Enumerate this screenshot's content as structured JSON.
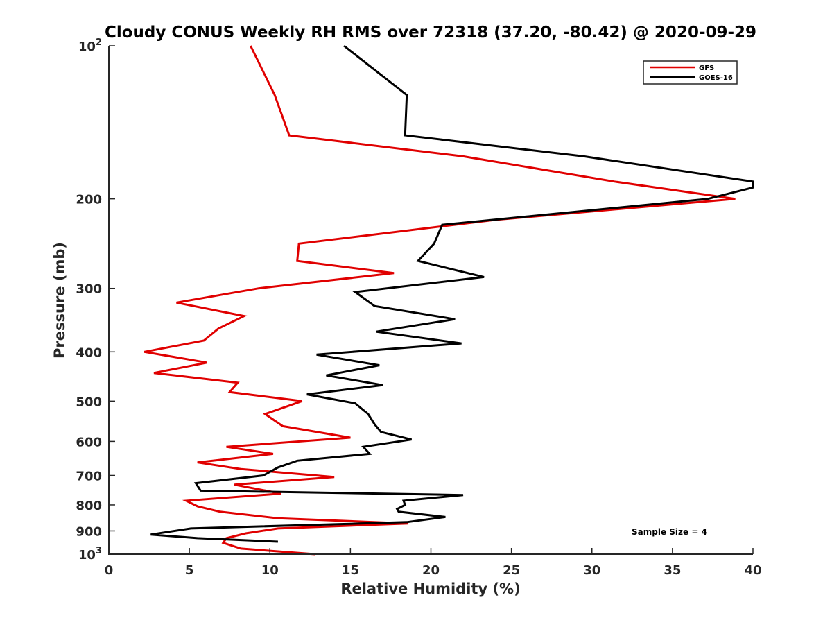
{
  "chart_data": {
    "type": "line",
    "title": "Cloudy CONUS Weekly RH RMS over 72318 (37.20, -80.42) @ 2020-09-29",
    "xlabel": "Relative Humidity (%)",
    "ylabel": "Pressure (mb)",
    "xlim": [
      0,
      40
    ],
    "ylim": [
      100,
      1000
    ],
    "y_scale": "log",
    "y_direction": "reversed",
    "grid": false,
    "legend_position": "top-right",
    "x_ticks": [
      0,
      5,
      10,
      15,
      20,
      25,
      30,
      35,
      40
    ],
    "y_ticks": [
      {
        "value": 100,
        "base": "10",
        "exp": "2"
      },
      {
        "value": 200,
        "label": "200"
      },
      {
        "value": 300,
        "label": "300"
      },
      {
        "value": 400,
        "label": "400"
      },
      {
        "value": 500,
        "label": "500"
      },
      {
        "value": 600,
        "label": "600"
      },
      {
        "value": 700,
        "label": "700"
      },
      {
        "value": 800,
        "label": "800"
      },
      {
        "value": 900,
        "label": "900"
      },
      {
        "value": 1000,
        "base": "10",
        "exp": "3"
      }
    ],
    "series": [
      {
        "name": "GFS",
        "color": "#e00000",
        "points": [
          [
            8.8,
            100
          ],
          [
            10.3,
            125
          ],
          [
            11.2,
            150
          ],
          [
            22.0,
            165
          ],
          [
            31.4,
            185
          ],
          [
            38.9,
            200
          ],
          [
            24.0,
            220
          ],
          [
            11.8,
            245
          ],
          [
            11.7,
            265
          ],
          [
            17.7,
            280
          ],
          [
            9.3,
            300
          ],
          [
            4.2,
            320
          ],
          [
            8.4,
            340
          ],
          [
            6.8,
            360
          ],
          [
            5.9,
            380
          ],
          [
            2.2,
            400
          ],
          [
            6.1,
            420
          ],
          [
            2.8,
            440
          ],
          [
            8.0,
            460
          ],
          [
            7.5,
            480
          ],
          [
            12.0,
            500
          ],
          [
            9.7,
            530
          ],
          [
            10.8,
            560
          ],
          [
            15.0,
            590
          ],
          [
            7.3,
            615
          ],
          [
            10.2,
            635
          ],
          [
            5.5,
            660
          ],
          [
            8.2,
            680
          ],
          [
            14.0,
            705
          ],
          [
            7.8,
            730
          ],
          [
            10.7,
            760
          ],
          [
            4.8,
            785
          ],
          [
            5.5,
            805
          ],
          [
            6.9,
            825
          ],
          [
            10.5,
            850
          ],
          [
            18.6,
            870
          ],
          [
            10.5,
            890
          ],
          [
            8.5,
            910
          ],
          [
            7.3,
            930
          ],
          [
            7.1,
            950
          ],
          [
            8.2,
            975
          ],
          [
            12.8,
            1000
          ]
        ]
      },
      {
        "name": "GOES-16",
        "color": "#000000",
        "points": [
          [
            14.6,
            100
          ],
          [
            18.5,
            125
          ],
          [
            18.4,
            150
          ],
          [
            29.5,
            165
          ],
          [
            40.0,
            185
          ],
          [
            40.0,
            190
          ],
          [
            37.2,
            200
          ],
          [
            20.7,
            225
          ],
          [
            20.2,
            245
          ],
          [
            19.2,
            265
          ],
          [
            23.3,
            285
          ],
          [
            15.3,
            305
          ],
          [
            16.5,
            325
          ],
          [
            21.5,
            345
          ],
          [
            16.6,
            365
          ],
          [
            21.9,
            385
          ],
          [
            12.9,
            405
          ],
          [
            16.8,
            425
          ],
          [
            13.5,
            445
          ],
          [
            17.0,
            465
          ],
          [
            12.3,
            485
          ],
          [
            15.3,
            505
          ],
          [
            16.1,
            530
          ],
          [
            16.5,
            555
          ],
          [
            16.9,
            575
          ],
          [
            18.8,
            595
          ],
          [
            15.8,
            615
          ],
          [
            16.2,
            635
          ],
          [
            11.7,
            655
          ],
          [
            10.5,
            675
          ],
          [
            9.6,
            700
          ],
          [
            5.4,
            725
          ],
          [
            5.7,
            750
          ],
          [
            22.0,
            765
          ],
          [
            18.3,
            785
          ],
          [
            18.4,
            800
          ],
          [
            17.9,
            815
          ],
          [
            18.0,
            825
          ],
          [
            20.9,
            845
          ],
          [
            18.5,
            865
          ],
          [
            5.1,
            890
          ],
          [
            2.6,
            915
          ],
          [
            5.5,
            930
          ],
          [
            10.5,
            945
          ]
        ]
      }
    ],
    "annotation": "Sample Size = 4"
  }
}
